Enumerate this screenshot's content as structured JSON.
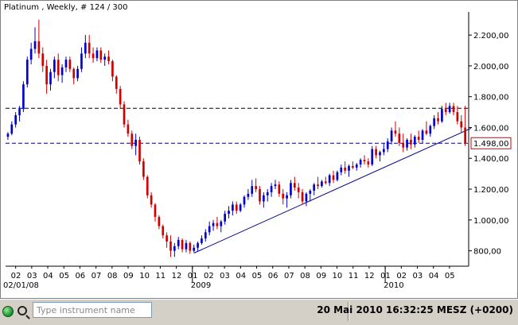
{
  "chart_title": "Platinum , Weekly, # 124 / 300",
  "status": {
    "search_placeholder": "Type instrument name",
    "clock": "20 Mai 2010 16:32:25  MESZ (+0200)"
  },
  "colors": {
    "up": "#0000cc",
    "down": "#d00000",
    "trend": "#00008b",
    "hline": "#000000",
    "price_hline": "#00008b"
  },
  "chart_data": {
    "type": "candlestick",
    "title": "Platinum , Weekly, # 124 / 300",
    "ylim": [
      700,
      2350
    ],
    "yticks": [
      {
        "v": 2200,
        "label": "2.200,00"
      },
      {
        "v": 2000,
        "label": "2.000,00"
      },
      {
        "v": 1800,
        "label": "1.800,00"
      },
      {
        "v": 1600,
        "label": "1.600,00"
      },
      {
        "v": 1400,
        "label": "1.400,00"
      },
      {
        "v": 1200,
        "label": "1.200,00"
      },
      {
        "v": 1000,
        "label": "1.000,00"
      },
      {
        "v": 800,
        "label": "800,00"
      }
    ],
    "current_price": {
      "value": 1498,
      "label": "1.498,00"
    },
    "hlines": [
      1725
    ],
    "x_month_labels": [
      "02",
      "03",
      "04",
      "05",
      "06",
      "07",
      "08",
      "09",
      "10",
      "11",
      "12",
      "01",
      "02",
      "03",
      "04",
      "05",
      "06",
      "07",
      "08",
      "09",
      "10",
      "11",
      "12",
      "01",
      "02",
      "03",
      "04",
      "05",
      "06"
    ],
    "x_start_label": "02/01/08",
    "x_year_labels": [
      {
        "label": "2009",
        "at_month_index": 11
      },
      {
        "label": "2010",
        "at_month_index": 23
      }
    ],
    "trendline": {
      "from": {
        "week_index": 48,
        "price": 785
      },
      "to": {
        "week_index": 126,
        "price": 1595
      }
    },
    "candles": [
      [
        1540,
        1570,
        1520,
        1560
      ],
      [
        1560,
        1640,
        1550,
        1620
      ],
      [
        1620,
        1700,
        1600,
        1680
      ],
      [
        1680,
        1740,
        1640,
        1720
      ],
      [
        1720,
        1900,
        1700,
        1880
      ],
      [
        1880,
        2060,
        1860,
        2040
      ],
      [
        2040,
        2150,
        2010,
        2110
      ],
      [
        2110,
        2250,
        2080,
        2160
      ],
      [
        2160,
        2300,
        2050,
        2080
      ],
      [
        2080,
        2120,
        1960,
        2000
      ],
      [
        2000,
        2040,
        1820,
        1880
      ],
      [
        1880,
        1980,
        1840,
        1960
      ],
      [
        1960,
        2060,
        1920,
        2040
      ],
      [
        2040,
        2080,
        1900,
        1940
      ],
      [
        1940,
        2010,
        1890,
        1990
      ],
      [
        1990,
        2060,
        1960,
        2040
      ],
      [
        2040,
        2060,
        1960,
        1980
      ],
      [
        1980,
        1990,
        1880,
        1920
      ],
      [
        1920,
        2000,
        1900,
        1980
      ],
      [
        1980,
        2120,
        1960,
        2080
      ],
      [
        2080,
        2200,
        2050,
        2150
      ],
      [
        2150,
        2200,
        2050,
        2080
      ],
      [
        2080,
        2120,
        2020,
        2050
      ],
      [
        2050,
        2120,
        2030,
        2100
      ],
      [
        2100,
        2120,
        2020,
        2040
      ],
      [
        2040,
        2080,
        2000,
        2060
      ],
      [
        2060,
        2100,
        2010,
        2030
      ],
      [
        2030,
        2040,
        1900,
        1930
      ],
      [
        1930,
        1940,
        1820,
        1850
      ],
      [
        1850,
        1870,
        1720,
        1750
      ],
      [
        1750,
        1770,
        1600,
        1620
      ],
      [
        1620,
        1650,
        1540,
        1560
      ],
      [
        1560,
        1580,
        1460,
        1480
      ],
      [
        1480,
        1560,
        1420,
        1520
      ],
      [
        1520,
        1540,
        1360,
        1380
      ],
      [
        1380,
        1400,
        1260,
        1280
      ],
      [
        1280,
        1290,
        1140,
        1160
      ],
      [
        1160,
        1180,
        1080,
        1100
      ],
      [
        1100,
        1110,
        990,
        1020
      ],
      [
        1020,
        1030,
        940,
        960
      ],
      [
        960,
        970,
        880,
        900
      ],
      [
        900,
        920,
        820,
        860
      ],
      [
        860,
        900,
        760,
        800
      ],
      [
        800,
        850,
        760,
        830
      ],
      [
        830,
        890,
        810,
        870
      ],
      [
        870,
        880,
        790,
        810
      ],
      [
        810,
        870,
        790,
        850
      ],
      [
        850,
        860,
        780,
        800
      ],
      [
        800,
        840,
        790,
        820
      ],
      [
        820,
        860,
        800,
        850
      ],
      [
        850,
        900,
        840,
        880
      ],
      [
        880,
        940,
        860,
        920
      ],
      [
        920,
        990,
        900,
        960
      ],
      [
        960,
        1000,
        930,
        980
      ],
      [
        980,
        1020,
        940,
        960
      ],
      [
        960,
        1000,
        920,
        990
      ],
      [
        990,
        1060,
        970,
        1040
      ],
      [
        1040,
        1090,
        1010,
        1060
      ],
      [
        1060,
        1120,
        1030,
        1100
      ],
      [
        1100,
        1120,
        1040,
        1060
      ],
      [
        1060,
        1110,
        1050,
        1100
      ],
      [
        1100,
        1160,
        1080,
        1150
      ],
      [
        1150,
        1200,
        1130,
        1170
      ],
      [
        1170,
        1260,
        1150,
        1220
      ],
      [
        1220,
        1270,
        1180,
        1200
      ],
      [
        1200,
        1220,
        1100,
        1120
      ],
      [
        1120,
        1180,
        1080,
        1160
      ],
      [
        1160,
        1200,
        1120,
        1180
      ],
      [
        1180,
        1240,
        1150,
        1220
      ],
      [
        1220,
        1260,
        1200,
        1230
      ],
      [
        1230,
        1250,
        1150,
        1170
      ],
      [
        1170,
        1200,
        1100,
        1140
      ],
      [
        1140,
        1180,
        1080,
        1160
      ],
      [
        1160,
        1260,
        1140,
        1240
      ],
      [
        1240,
        1280,
        1190,
        1210
      ],
      [
        1210,
        1240,
        1140,
        1180
      ],
      [
        1180,
        1200,
        1100,
        1120
      ],
      [
        1120,
        1180,
        1090,
        1170
      ],
      [
        1170,
        1200,
        1120,
        1190
      ],
      [
        1190,
        1240,
        1160,
        1230
      ],
      [
        1230,
        1280,
        1200,
        1220
      ],
      [
        1220,
        1260,
        1210,
        1250
      ],
      [
        1250,
        1280,
        1230,
        1240
      ],
      [
        1240,
        1300,
        1220,
        1290
      ],
      [
        1290,
        1320,
        1240,
        1260
      ],
      [
        1260,
        1320,
        1250,
        1310
      ],
      [
        1310,
        1360,
        1290,
        1340
      ],
      [
        1340,
        1380,
        1300,
        1320
      ],
      [
        1320,
        1360,
        1280,
        1350
      ],
      [
        1350,
        1380,
        1330,
        1340
      ],
      [
        1340,
        1370,
        1320,
        1360
      ],
      [
        1360,
        1400,
        1340,
        1390
      ],
      [
        1390,
        1420,
        1360,
        1380
      ],
      [
        1380,
        1400,
        1340,
        1360
      ],
      [
        1360,
        1480,
        1350,
        1460
      ],
      [
        1460,
        1480,
        1400,
        1420
      ],
      [
        1420,
        1450,
        1380,
        1440
      ],
      [
        1440,
        1500,
        1420,
        1460
      ],
      [
        1460,
        1530,
        1440,
        1510
      ],
      [
        1510,
        1600,
        1490,
        1580
      ],
      [
        1580,
        1640,
        1540,
        1560
      ],
      [
        1560,
        1600,
        1480,
        1500
      ],
      [
        1500,
        1560,
        1440,
        1470
      ],
      [
        1470,
        1530,
        1450,
        1520
      ],
      [
        1520,
        1560,
        1460,
        1490
      ],
      [
        1490,
        1550,
        1470,
        1540
      ],
      [
        1540,
        1580,
        1500,
        1520
      ],
      [
        1520,
        1590,
        1500,
        1580
      ],
      [
        1580,
        1640,
        1550,
        1560
      ],
      [
        1560,
        1620,
        1540,
        1610
      ],
      [
        1610,
        1680,
        1590,
        1660
      ],
      [
        1660,
        1700,
        1620,
        1640
      ],
      [
        1640,
        1740,
        1630,
        1720
      ],
      [
        1720,
        1760,
        1680,
        1700
      ],
      [
        1700,
        1760,
        1690,
        1740
      ],
      [
        1740,
        1760,
        1680,
        1700
      ],
      [
        1700,
        1740,
        1620,
        1640
      ],
      [
        1640,
        1680,
        1570,
        1600
      ],
      [
        1600,
        1740,
        1480,
        1500
      ]
    ]
  }
}
